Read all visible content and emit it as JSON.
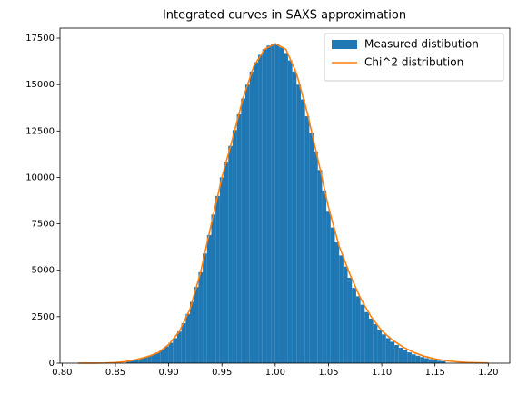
{
  "chart_data": {
    "type": "histogram",
    "title": "Integrated curves in SAXS approximation",
    "xlim": [
      0.798,
      1.2202
    ],
    "ylim": [
      0,
      18040
    ],
    "xticks": [
      {
        "value": 0.8,
        "label": "0.80"
      },
      0.85,
      {
        "value": 0.9,
        "label": "0.90"
      },
      0.95,
      {
        "value": 1.0,
        "label": "1.00"
      },
      1.05,
      {
        "value": 1.1,
        "label": "1.10"
      },
      1.15,
      {
        "value": 1.2,
        "label": "1.20"
      }
    ],
    "yticks": [
      0,
      2500,
      5000,
      7500,
      10000,
      12500,
      15000,
      17500
    ],
    "grid": false,
    "legend": "upper right",
    "series": [
      {
        "name": "Measured distibution",
        "type": "histogram",
        "color": "#1f77b4",
        "bins": [
          0.86,
          0.864,
          0.868,
          0.872,
          0.876,
          0.88,
          0.884,
          0.888,
          0.892,
          0.896,
          0.9,
          0.904,
          0.908,
          0.912,
          0.916,
          0.92,
          0.924,
          0.928,
          0.932,
          0.936,
          0.94,
          0.944,
          0.948,
          0.952,
          0.956,
          0.96,
          0.964,
          0.968,
          0.972,
          0.976,
          0.98,
          0.984,
          0.988,
          0.992,
          0.996,
          1.0,
          1.004,
          1.008,
          1.012,
          1.016,
          1.02,
          1.024,
          1.028,
          1.032,
          1.036,
          1.04,
          1.044,
          1.048,
          1.052,
          1.056,
          1.06,
          1.064,
          1.068,
          1.072,
          1.076,
          1.08,
          1.084,
          1.088,
          1.092,
          1.096,
          1.1,
          1.104,
          1.108,
          1.112,
          1.116,
          1.12,
          1.124,
          1.128,
          1.132,
          1.136,
          1.14,
          1.144,
          1.148,
          1.152,
          1.156,
          1.16
        ],
        "values": [
          110,
          150,
          200,
          250,
          320,
          400,
          480,
          580,
          720,
          900,
          1100,
          1350,
          1700,
          2150,
          2650,
          3300,
          4100,
          4900,
          5900,
          6900,
          8000,
          9000,
          10000,
          10850,
          11700,
          12550,
          13400,
          14250,
          15000,
          15700,
          16200,
          16600,
          16900,
          17100,
          17200,
          17150,
          17000,
          16700,
          16300,
          15700,
          15000,
          14200,
          13300,
          12400,
          11400,
          10400,
          9300,
          8200,
          7300,
          6500,
          5800,
          5200,
          4600,
          4050,
          3600,
          3150,
          2750,
          2400,
          2100,
          1800,
          1550,
          1350,
          1150,
          980,
          830,
          700,
          580,
          480,
          400,
          330,
          270,
          220,
          170,
          130,
          100
        ]
      },
      {
        "name": "Chi^2 distribution",
        "type": "line",
        "color": "#ff7f0e",
        "x": [
          0.815,
          0.82,
          0.83,
          0.84,
          0.85,
          0.86,
          0.87,
          0.88,
          0.89,
          0.9,
          0.91,
          0.92,
          0.93,
          0.94,
          0.95,
          0.96,
          0.97,
          0.98,
          0.99,
          1.0,
          1.01,
          1.02,
          1.03,
          1.04,
          1.05,
          1.06,
          1.07,
          1.08,
          1.09,
          1.1,
          1.11,
          1.12,
          1.13,
          1.14,
          1.15,
          1.16,
          1.17,
          1.18,
          1.19,
          1.2
        ],
        "values": [
          0,
          1,
          4,
          12,
          35,
          90,
          200,
          350,
          560,
          1000,
          1700,
          2900,
          4900,
          7500,
          10000,
          12100,
          14300,
          16000,
          16900,
          17200,
          16900,
          15600,
          13500,
          11000,
          8400,
          6300,
          4800,
          3500,
          2500,
          1750,
          1250,
          870,
          580,
          370,
          230,
          135,
          75,
          40,
          20,
          10
        ]
      }
    ]
  }
}
